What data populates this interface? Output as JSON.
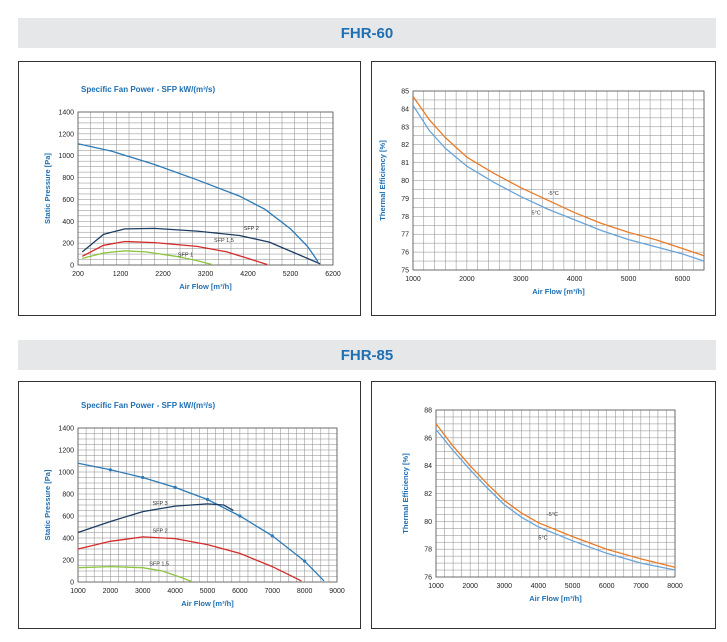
{
  "sections": [
    {
      "title": "FHR-60"
    },
    {
      "title": "FHR-85"
    }
  ],
  "colors": {
    "axis_text": "#1e6fb3",
    "grid": "#8a8a8a",
    "frame": "#333333",
    "header_bg": "#e6e7e9",
    "blue": "#2a7ab8",
    "dark_blue": "#1d3d63",
    "red": "#d42a2a",
    "green": "#8cc63f",
    "orange": "#e97b26",
    "light_blue": "#6aa4d9"
  },
  "chart_data": [
    {
      "id": "fhr60-pressure",
      "type": "line",
      "title": "Specific Fan Power - SFP kW/(m³/s)",
      "xlabel": "Air Flow [m³/h]",
      "ylabel": "Static Pressure [Pa]",
      "xlim": [
        200,
        6200
      ],
      "ylim": [
        0,
        1400
      ],
      "xticks": [
        "200",
        "1200",
        "2200",
        "3200",
        "4200",
        "5200",
        "6200"
      ],
      "yticks": [
        "0",
        "200",
        "400",
        "600",
        "800",
        "1000",
        "1200",
        "1400"
      ],
      "x_minor": 300,
      "y_minor": 50,
      "series": [
        {
          "color": "#2a7ab8",
          "markers": false,
          "points": [
            [
              200,
              1110
            ],
            [
              1000,
              1040
            ],
            [
              2000,
              920
            ],
            [
              3000,
              780
            ],
            [
              4000,
              630
            ],
            [
              4600,
              510
            ],
            [
              5200,
              330
            ],
            [
              5600,
              170
            ],
            [
              5850,
              30
            ]
          ]
        },
        {
          "color": "#1d3d63",
          "markers": false,
          "points": [
            [
              300,
              120
            ],
            [
              800,
              280
            ],
            [
              1300,
              330
            ],
            [
              2000,
              335
            ],
            [
              3000,
              310
            ],
            [
              4000,
              270
            ],
            [
              4700,
              210
            ],
            [
              5300,
              110
            ],
            [
              5900,
              10
            ]
          ]
        },
        {
          "color": "#d42a2a",
          "markers": false,
          "points": [
            [
              300,
              80
            ],
            [
              800,
              180
            ],
            [
              1300,
              215
            ],
            [
              2000,
              205
            ],
            [
              3000,
              170
            ],
            [
              3700,
              120
            ],
            [
              4200,
              60
            ],
            [
              4650,
              5
            ]
          ]
        },
        {
          "color": "#8cc63f",
          "markers": false,
          "points": [
            [
              300,
              60
            ],
            [
              800,
              110
            ],
            [
              1300,
              130
            ],
            [
              1800,
              120
            ],
            [
              2500,
              80
            ],
            [
              3000,
              40
            ],
            [
              3350,
              5
            ]
          ]
        }
      ],
      "annotations": [
        {
          "text": "SFP 2",
          "x": 4100,
          "y": 320
        },
        {
          "text": "SFP 1,5",
          "x": 3400,
          "y": 210
        },
        {
          "text": "SFP 1",
          "x": 2550,
          "y": 80
        }
      ]
    },
    {
      "id": "fhr60-efficiency",
      "type": "line",
      "title": "",
      "xlabel": "Air Flow [m³/h]",
      "ylabel": "Thermal Efficiency [%]",
      "xlim": [
        1000,
        6400
      ],
      "ylim": [
        75,
        85
      ],
      "xticks": [
        "1000",
        "2000",
        "3000",
        "4000",
        "5000",
        "6000"
      ],
      "xtick_values": [
        1000,
        2000,
        3000,
        4000,
        5000,
        6000
      ],
      "yticks": [
        "75",
        "76",
        "77",
        "78",
        "79",
        "80",
        "81",
        "82",
        "83",
        "84",
        "85"
      ],
      "x_minor": 200,
      "y_minor": 0.5,
      "series": [
        {
          "color": "#e97b26",
          "markers": false,
          "points": [
            [
              1000,
              84.7
            ],
            [
              1300,
              83.4
            ],
            [
              1600,
              82.4
            ],
            [
              2000,
              81.3
            ],
            [
              2500,
              80.4
            ],
            [
              3000,
              79.6
            ],
            [
              3500,
              78.9
            ],
            [
              4000,
              78.2
            ],
            [
              4500,
              77.6
            ],
            [
              5000,
              77.1
            ],
            [
              5500,
              76.7
            ],
            [
              6000,
              76.2
            ],
            [
              6400,
              75.8
            ]
          ]
        },
        {
          "color": "#6aa4d9",
          "markers": false,
          "points": [
            [
              1000,
              84.2
            ],
            [
              1300,
              82.8
            ],
            [
              1600,
              81.8
            ],
            [
              2000,
              80.8
            ],
            [
              2500,
              79.9
            ],
            [
              3000,
              79.1
            ],
            [
              3500,
              78.4
            ],
            [
              4000,
              77.8
            ],
            [
              4500,
              77.2
            ],
            [
              5000,
              76.7
            ],
            [
              5500,
              76.3
            ],
            [
              6000,
              75.9
            ],
            [
              6400,
              75.5
            ]
          ]
        }
      ],
      "annotations": [
        {
          "text": "-5°C",
          "x": 3500,
          "y": 79.2
        },
        {
          "text": "5°C",
          "x": 3200,
          "y": 78.1
        }
      ]
    },
    {
      "id": "fhr85-pressure",
      "type": "line",
      "title": "Specific Fan Power - SFP kW/(m³/s)",
      "xlabel": "Air Flow [m³/h]",
      "ylabel": "Static Pressure [Pa]",
      "xlim": [
        1000,
        9000
      ],
      "ylim": [
        0,
        1400
      ],
      "xticks": [
        "1000",
        "2000",
        "3000",
        "4000",
        "5000",
        "6000",
        "7000",
        "8000",
        "9000"
      ],
      "yticks": [
        "0",
        "200",
        "400",
        "600",
        "800",
        "1000",
        "1200",
        "1400"
      ],
      "x_minor": 250,
      "y_minor": 50,
      "series": [
        {
          "color": "#2a7ab8",
          "markers": true,
          "points": [
            [
              1000,
              1080
            ],
            [
              2000,
              1020
            ],
            [
              3000,
              950
            ],
            [
              4000,
              860
            ],
            [
              5000,
              750
            ],
            [
              6000,
              600
            ],
            [
              7000,
              420
            ],
            [
              8000,
              190
            ],
            [
              8600,
              10
            ]
          ]
        },
        {
          "color": "#1d3d63",
          "markers": false,
          "points": [
            [
              1000,
              450
            ],
            [
              2000,
              550
            ],
            [
              3000,
              640
            ],
            [
              4000,
              690
            ],
            [
              5000,
              710
            ],
            [
              5500,
              700
            ],
            [
              5800,
              650
            ]
          ]
        },
        {
          "color": "#d42a2a",
          "markers": false,
          "points": [
            [
              1000,
              300
            ],
            [
              2000,
              370
            ],
            [
              3000,
              410
            ],
            [
              4000,
              395
            ],
            [
              5000,
              340
            ],
            [
              6000,
              260
            ],
            [
              7000,
              140
            ],
            [
              7900,
              10
            ]
          ]
        },
        {
          "color": "#8cc63f",
          "markers": false,
          "points": [
            [
              1000,
              130
            ],
            [
              2000,
              140
            ],
            [
              3000,
              130
            ],
            [
              3600,
              100
            ],
            [
              4200,
              40
            ],
            [
              4500,
              5
            ]
          ]
        }
      ],
      "annotations": [
        {
          "text": "SFP 3",
          "x": 3300,
          "y": 700
        },
        {
          "text": "SFP 2",
          "x": 3300,
          "y": 450
        },
        {
          "text": "SFP 1,5",
          "x": 3200,
          "y": 150
        }
      ]
    },
    {
      "id": "fhr85-efficiency",
      "type": "line",
      "title": "",
      "xlabel": "Air Flow [m³/h]",
      "ylabel": "Thermal Efficiency [%]",
      "xlim": [
        1000,
        8000
      ],
      "ylim": [
        76,
        88
      ],
      "xticks": [
        "1000",
        "2000",
        "3000",
        "4000",
        "5000",
        "6000",
        "7000",
        "8000"
      ],
      "xtick_values": [
        1000,
        2000,
        3000,
        4000,
        5000,
        6000,
        7000,
        8000
      ],
      "yticks": [
        "76",
        "78",
        "80",
        "82",
        "84",
        "86",
        "88"
      ],
      "x_minor": 250,
      "y_minor": 0.5,
      "series": [
        {
          "color": "#e97b26",
          "markers": false,
          "points": [
            [
              1000,
              87
            ],
            [
              1500,
              85.4
            ],
            [
              2000,
              84
            ],
            [
              2500,
              82.7
            ],
            [
              3000,
              81.5
            ],
            [
              3500,
              80.6
            ],
            [
              4000,
              79.9
            ],
            [
              5000,
              78.9
            ],
            [
              6000,
              78
            ],
            [
              7000,
              77.3
            ],
            [
              8000,
              76.7
            ]
          ]
        },
        {
          "color": "#6aa4d9",
          "markers": false,
          "points": [
            [
              1000,
              86.6
            ],
            [
              1500,
              85.1
            ],
            [
              2000,
              83.7
            ],
            [
              2500,
              82.4
            ],
            [
              3000,
              81.2
            ],
            [
              3500,
              80.3
            ],
            [
              4000,
              79.6
            ],
            [
              5000,
              78.6
            ],
            [
              6000,
              77.7
            ],
            [
              7000,
              77
            ],
            [
              8000,
              76.5
            ]
          ]
        }
      ],
      "annotations": [
        {
          "text": "-5°C",
          "x": 4250,
          "y": 80.4
        },
        {
          "text": "5°C",
          "x": 4000,
          "y": 78.7
        }
      ]
    }
  ]
}
